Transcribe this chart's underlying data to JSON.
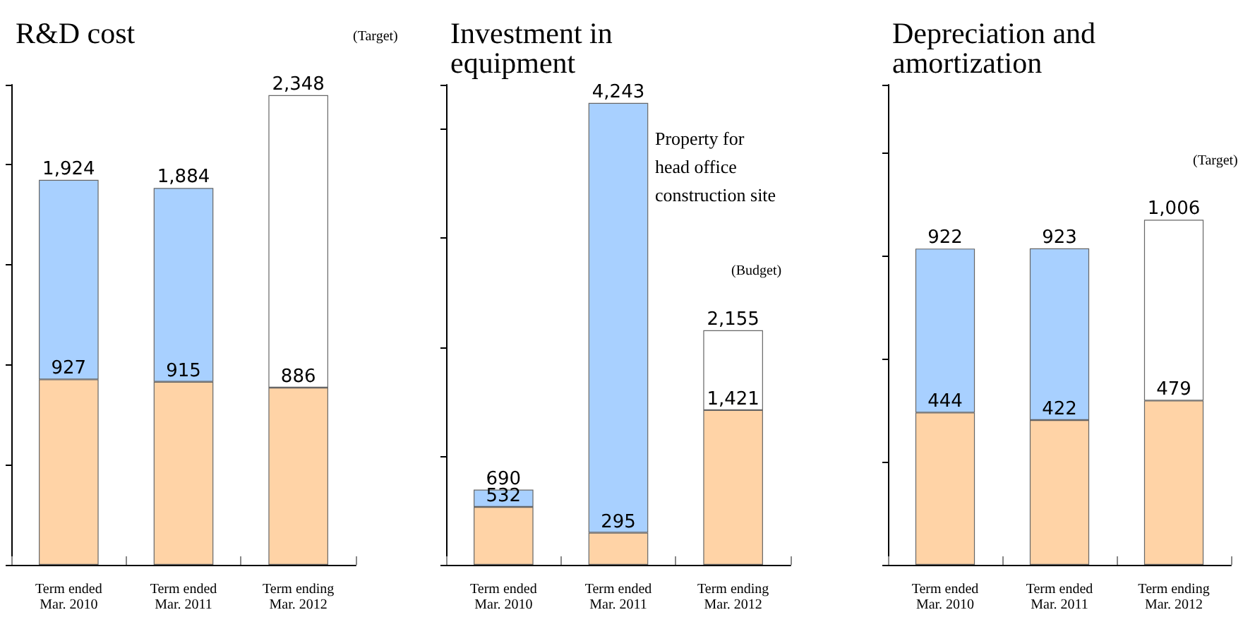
{
  "chart_data": [
    {
      "type": "bar",
      "title": "R&D cost",
      "categories": [
        "Term ended\nMar. 2010",
        "Term ended\nMar. 2011",
        "Term ending\nMar. 2012"
      ],
      "stacked": true,
      "ylim": [
        0,
        2400
      ],
      "tick_labels": "x",
      "series": [
        {
          "colors": [
            "#ffd3a6",
            "#ffd3a6",
            "#ffd3a6"
          ],
          "values": [
            927,
            915,
            886
          ],
          "value_labels": [
            "927",
            "915",
            "886"
          ]
        },
        {
          "colors": [
            "#a8d0ff",
            "#a8d0ff",
            "#ffffff"
          ],
          "values": [
            997,
            969,
            1462
          ]
        }
      ],
      "totals": [
        "1,924",
        "1,884",
        "2,348"
      ],
      "annotations": [
        "(Target)"
      ]
    },
    {
      "type": "bar",
      "title": "Investment in\nequipment",
      "categories": [
        "Term ended\nMar. 2010",
        "Term ended\nMar. 2011",
        "Term ending\nMar. 2012"
      ],
      "stacked": true,
      "ylim": [
        0,
        4410
      ],
      "tick_labels": "x",
      "series": [
        {
          "colors": [
            "#ffd3a6",
            "#ffd3a6",
            "#ffd3a6"
          ],
          "values": [
            532,
            295,
            1421
          ],
          "value_labels": [
            "532",
            "295",
            "1,421"
          ]
        },
        {
          "colors": [
            "#a8d0ff",
            "#a8d0ff",
            "#ffffff"
          ],
          "values": [
            158,
            3948,
            734
          ]
        }
      ],
      "totals": [
        "690",
        "4,243",
        "2,155"
      ],
      "annotations": [
        "Property for\nhead office\nconstruction site",
        "(Budget)"
      ]
    },
    {
      "type": "bar",
      "title": "Depreciation and\namortization",
      "categories": [
        "Term ended\nMar. 2010",
        "Term ended\nMar. 2011",
        "Term ending\nMar. 2012"
      ],
      "stacked": true,
      "ylim": [
        0,
        1400
      ],
      "tick_labels": "x",
      "series": [
        {
          "colors": [
            "#ffd3a6",
            "#ffd3a6",
            "#ffd3a6"
          ],
          "values": [
            444,
            422,
            479
          ],
          "value_labels": [
            "444",
            "422",
            "479"
          ]
        },
        {
          "colors": [
            "#a8d0ff",
            "#a8d0ff",
            "#ffffff"
          ],
          "values": [
            478,
            501,
            527
          ]
        }
      ],
      "totals": [
        "922",
        "923",
        "1,006"
      ],
      "annotations": [
        "(Target)"
      ]
    }
  ]
}
